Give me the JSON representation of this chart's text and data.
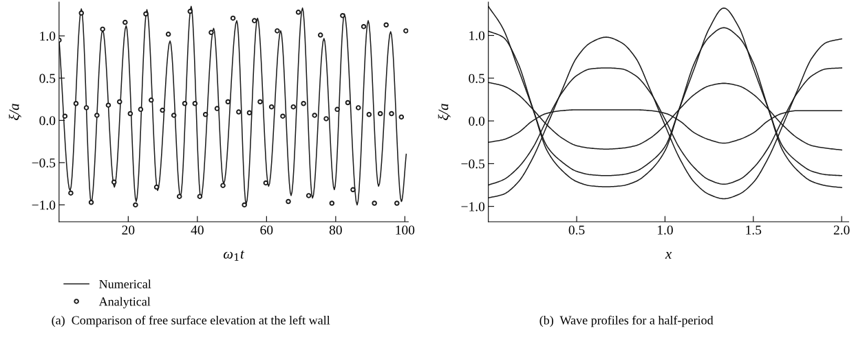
{
  "chart_data": [
    {
      "type": "line",
      "xlabel": "ω$_{1}$t",
      "ylabel": "ξ/a",
      "xlim": [
        0,
        101
      ],
      "ylim": [
        -1.2,
        1.4
      ],
      "xticks": [
        20,
        40,
        60,
        80,
        100
      ],
      "yticks": [
        {
          "value": -1.0,
          "label": "−1.0"
        },
        {
          "value": -0.5,
          "label": "−0.5"
        },
        {
          "value": 0.0,
          "label": "0.0"
        },
        {
          "value": 0.5,
          "label": "0.5"
        },
        {
          "value": 1.0,
          "label": "1.0"
        }
      ],
      "legend": "bottom left",
      "annotations": [
        "(a)  Comparison of free surface elevation at the left wall"
      ],
      "series": [
        {
          "name": "Numerical",
          "color": "#1a1a1a",
          "marker": "none",
          "line_style": "solid",
          "x": [
            0,
            3.2,
            6.45,
            9.3,
            12.6,
            16.0,
            19.4,
            22.3,
            25.4,
            28.5,
            32.1,
            35.1,
            38.2,
            41.0,
            44.7,
            47.6,
            51.4,
            54.1,
            57.4,
            60.6,
            64.1,
            67.1,
            70.4,
            73.3,
            76.6,
            79.6,
            82.5,
            86.2,
            89.4,
            92.4,
            95.9,
            99.0,
            100.4
          ],
          "values": [
            0.96,
            -0.83,
            1.32,
            -0.97,
            1.07,
            -0.79,
            1.12,
            -0.96,
            1.31,
            -0.83,
            0.94,
            -0.9,
            1.35,
            -0.92,
            1.09,
            -0.75,
            1.18,
            -0.99,
            1.21,
            -0.78,
            1.06,
            -0.89,
            1.33,
            -0.92,
            0.97,
            -0.82,
            1.26,
            -1.0,
            1.18,
            -0.78,
            1.05,
            -0.96,
            -0.4
          ]
        },
        {
          "name": "Analytical",
          "type": "scatter",
          "color": "#1a1a1a",
          "marker": "circle",
          "x": [
            0,
            1.7,
            3.4,
            4.9,
            6.45,
            7.9,
            9.3,
            10.95,
            12.6,
            14.25,
            15.9,
            17.5,
            19.1,
            20.6,
            22.1,
            23.6,
            25.1,
            26.65,
            28.2,
            29.9,
            31.6,
            33.2,
            34.8,
            36.35,
            37.9,
            39.3,
            40.7,
            42.35,
            44.0,
            45.7,
            47.4,
            48.85,
            50.3,
            51.95,
            53.6,
            55.05,
            56.5,
            58.15,
            59.8,
            61.45,
            63.1,
            64.7,
            66.3,
            67.75,
            69.2,
            70.7,
            72.2,
            73.9,
            75.6,
            77.25,
            78.9,
            80.45,
            82.0,
            83.5,
            85.0,
            86.55,
            88.1,
            89.65,
            91.2,
            92.9,
            94.6,
            96.15,
            97.7,
            99.0,
            100.3
          ],
          "values": [
            0.95,
            0.05,
            -0.86,
            0.2,
            1.27,
            0.15,
            -0.97,
            0.06,
            1.08,
            0.18,
            -0.73,
            0.22,
            1.16,
            0.08,
            -1.0,
            0.13,
            1.26,
            0.24,
            -0.79,
            0.12,
            1.02,
            0.06,
            -0.9,
            0.2,
            1.29,
            0.2,
            -0.9,
            0.07,
            1.04,
            0.14,
            -0.77,
            0.22,
            1.21,
            0.1,
            -1.0,
            0.09,
            1.18,
            0.22,
            -0.74,
            0.16,
            1.06,
            0.05,
            -0.96,
            0.16,
            1.28,
            0.2,
            -0.89,
            0.06,
            1.01,
            0.02,
            -0.98,
            0.13,
            1.24,
            0.21,
            -0.82,
            0.15,
            1.11,
            0.07,
            -0.98,
            0.08,
            1.13,
            0.08,
            -0.98,
            0.04,
            1.06
          ]
        }
      ]
    },
    {
      "type": "line",
      "xlabel": "x",
      "ylabel": "ξ/a",
      "xlim": [
        0,
        2.04
      ],
      "ylim": [
        -1.18,
        1.39
      ],
      "xticks": [
        {
          "value": 0.5,
          "label": "0.5"
        },
        {
          "value": 1.0,
          "label": "1.0"
        },
        {
          "value": 1.5,
          "label": "1.5"
        },
        {
          "value": 2.0,
          "label": "2.0"
        }
      ],
      "yticks": [
        {
          "value": -1.0,
          "label": "−1.0"
        },
        {
          "value": -0.5,
          "label": "−0.5"
        },
        {
          "value": 0.0,
          "label": "0.0"
        },
        {
          "value": 0.5,
          "label": "0.5"
        },
        {
          "value": 1.0,
          "label": "1.0"
        }
      ],
      "annotations": [
        "(b)  Wave profiles for a half-period"
      ],
      "x": [
        0,
        0.083,
        0.167,
        0.25,
        0.333,
        0.417,
        0.5,
        0.583,
        0.667,
        0.75,
        0.833,
        0.917,
        1.0,
        1.083,
        1.167,
        1.25,
        1.333,
        1.417,
        1.5,
        1.583,
        1.667,
        1.75,
        1.833,
        1.917,
        2.0
      ],
      "series": [
        {
          "color": "#1a1a1a",
          "marker": "none",
          "line_style": "solid",
          "values": [
            1.34,
            1.08,
            0.62,
            0.15,
            -0.35,
            -0.58,
            -0.71,
            -0.76,
            -0.77,
            -0.76,
            -0.71,
            -0.58,
            -0.35,
            0.15,
            0.62,
            1.08,
            1.32,
            1.1,
            0.62,
            0.15,
            -0.35,
            -0.58,
            -0.71,
            -0.76,
            -0.78
          ]
        },
        {
          "color": "#1a1a1a",
          "marker": "none",
          "line_style": "solid",
          "values": [
            1.05,
            0.98,
            0.68,
            0.16,
            -0.3,
            -0.48,
            -0.59,
            -0.63,
            -0.64,
            -0.63,
            -0.59,
            -0.48,
            -0.3,
            0.16,
            0.68,
            0.98,
            1.09,
            0.98,
            0.68,
            0.16,
            -0.3,
            -0.48,
            -0.59,
            -0.63,
            -0.64
          ]
        },
        {
          "color": "#1a1a1a",
          "marker": "none",
          "line_style": "solid",
          "values": [
            0.45,
            0.41,
            0.31,
            0.14,
            -0.05,
            -0.2,
            -0.29,
            -0.32,
            -0.33,
            -0.32,
            -0.29,
            -0.2,
            -0.05,
            0.14,
            0.31,
            0.41,
            0.44,
            0.41,
            0.31,
            0.14,
            -0.05,
            -0.2,
            -0.29,
            -0.32,
            -0.34
          ]
        },
        {
          "color": "#1a1a1a",
          "marker": "none",
          "line_style": "solid",
          "values": [
            -0.25,
            -0.22,
            -0.14,
            0.0,
            0.09,
            0.12,
            0.13,
            0.13,
            0.13,
            0.13,
            0.13,
            0.12,
            0.09,
            0.0,
            -0.14,
            -0.22,
            -0.26,
            -0.22,
            -0.14,
            0.0,
            0.09,
            0.12,
            0.12,
            0.12,
            0.12
          ]
        },
        {
          "color": "#1a1a1a",
          "marker": "none",
          "line_style": "solid",
          "values": [
            -0.75,
            -0.69,
            -0.55,
            -0.32,
            0.02,
            0.33,
            0.53,
            0.61,
            0.62,
            0.61,
            0.53,
            0.33,
            0.02,
            -0.32,
            -0.55,
            -0.69,
            -0.74,
            -0.69,
            -0.55,
            -0.32,
            0.02,
            0.33,
            0.53,
            0.61,
            0.62
          ]
        },
        {
          "color": "#1a1a1a",
          "marker": "none",
          "line_style": "solid",
          "values": [
            -0.9,
            -0.86,
            -0.72,
            -0.44,
            -0.05,
            0.36,
            0.74,
            0.92,
            0.98,
            0.92,
            0.74,
            0.36,
            -0.05,
            -0.44,
            -0.72,
            -0.86,
            -0.91,
            -0.86,
            -0.72,
            -0.44,
            -0.05,
            0.36,
            0.74,
            0.92,
            0.96
          ]
        }
      ]
    }
  ]
}
